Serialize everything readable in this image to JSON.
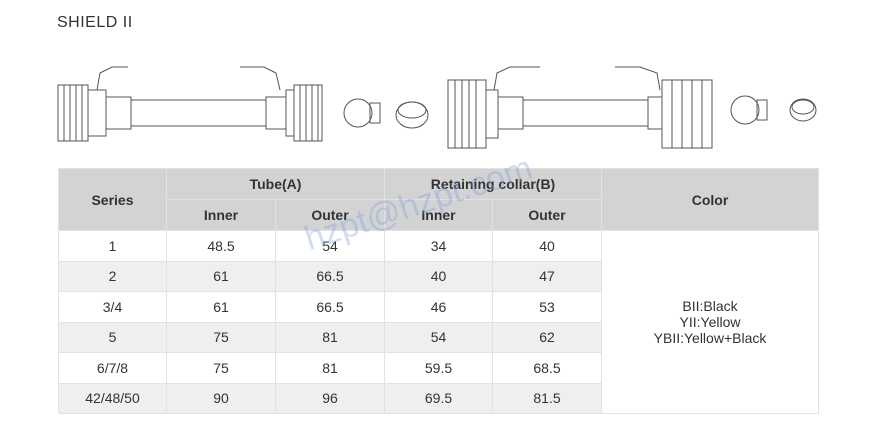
{
  "title": "SHIELD II",
  "table": {
    "headers": {
      "series": "Series",
      "tube": "Tube(A)",
      "collar": "Retaining collar(B)",
      "color": "Color",
      "inner": "Inner",
      "outer": "Outer"
    },
    "rows": [
      [
        "1",
        "48.5",
        "54",
        "34",
        "40"
      ],
      [
        "2",
        "61",
        "66.5",
        "40",
        "47"
      ],
      [
        "3/4",
        "61",
        "66.5",
        "46",
        "53"
      ],
      [
        "5",
        "75",
        "81",
        "54",
        "62"
      ],
      [
        "6/7/8",
        "75",
        "81",
        "59.5",
        "68.5"
      ],
      [
        "42/48/50",
        "90",
        "96",
        "69.5",
        "81.5"
      ]
    ],
    "colors": [
      "BII:Black",
      "YII:Yellow",
      "YBII:Yellow+Black"
    ]
  },
  "watermark": "hzpt@hzpt.com"
}
